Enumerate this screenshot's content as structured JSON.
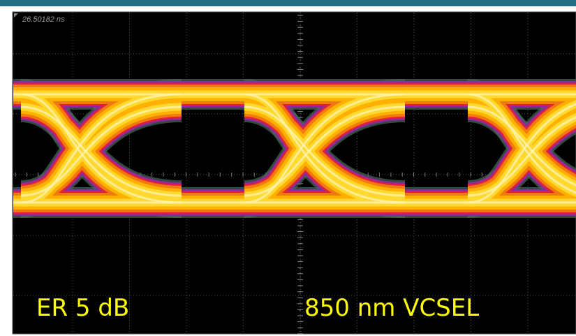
{
  "header": {
    "time_label": "26.50182 ns"
  },
  "annotations": {
    "extinction_ratio": "ER 5 dB",
    "source": "850 nm VCSEL"
  }
}
